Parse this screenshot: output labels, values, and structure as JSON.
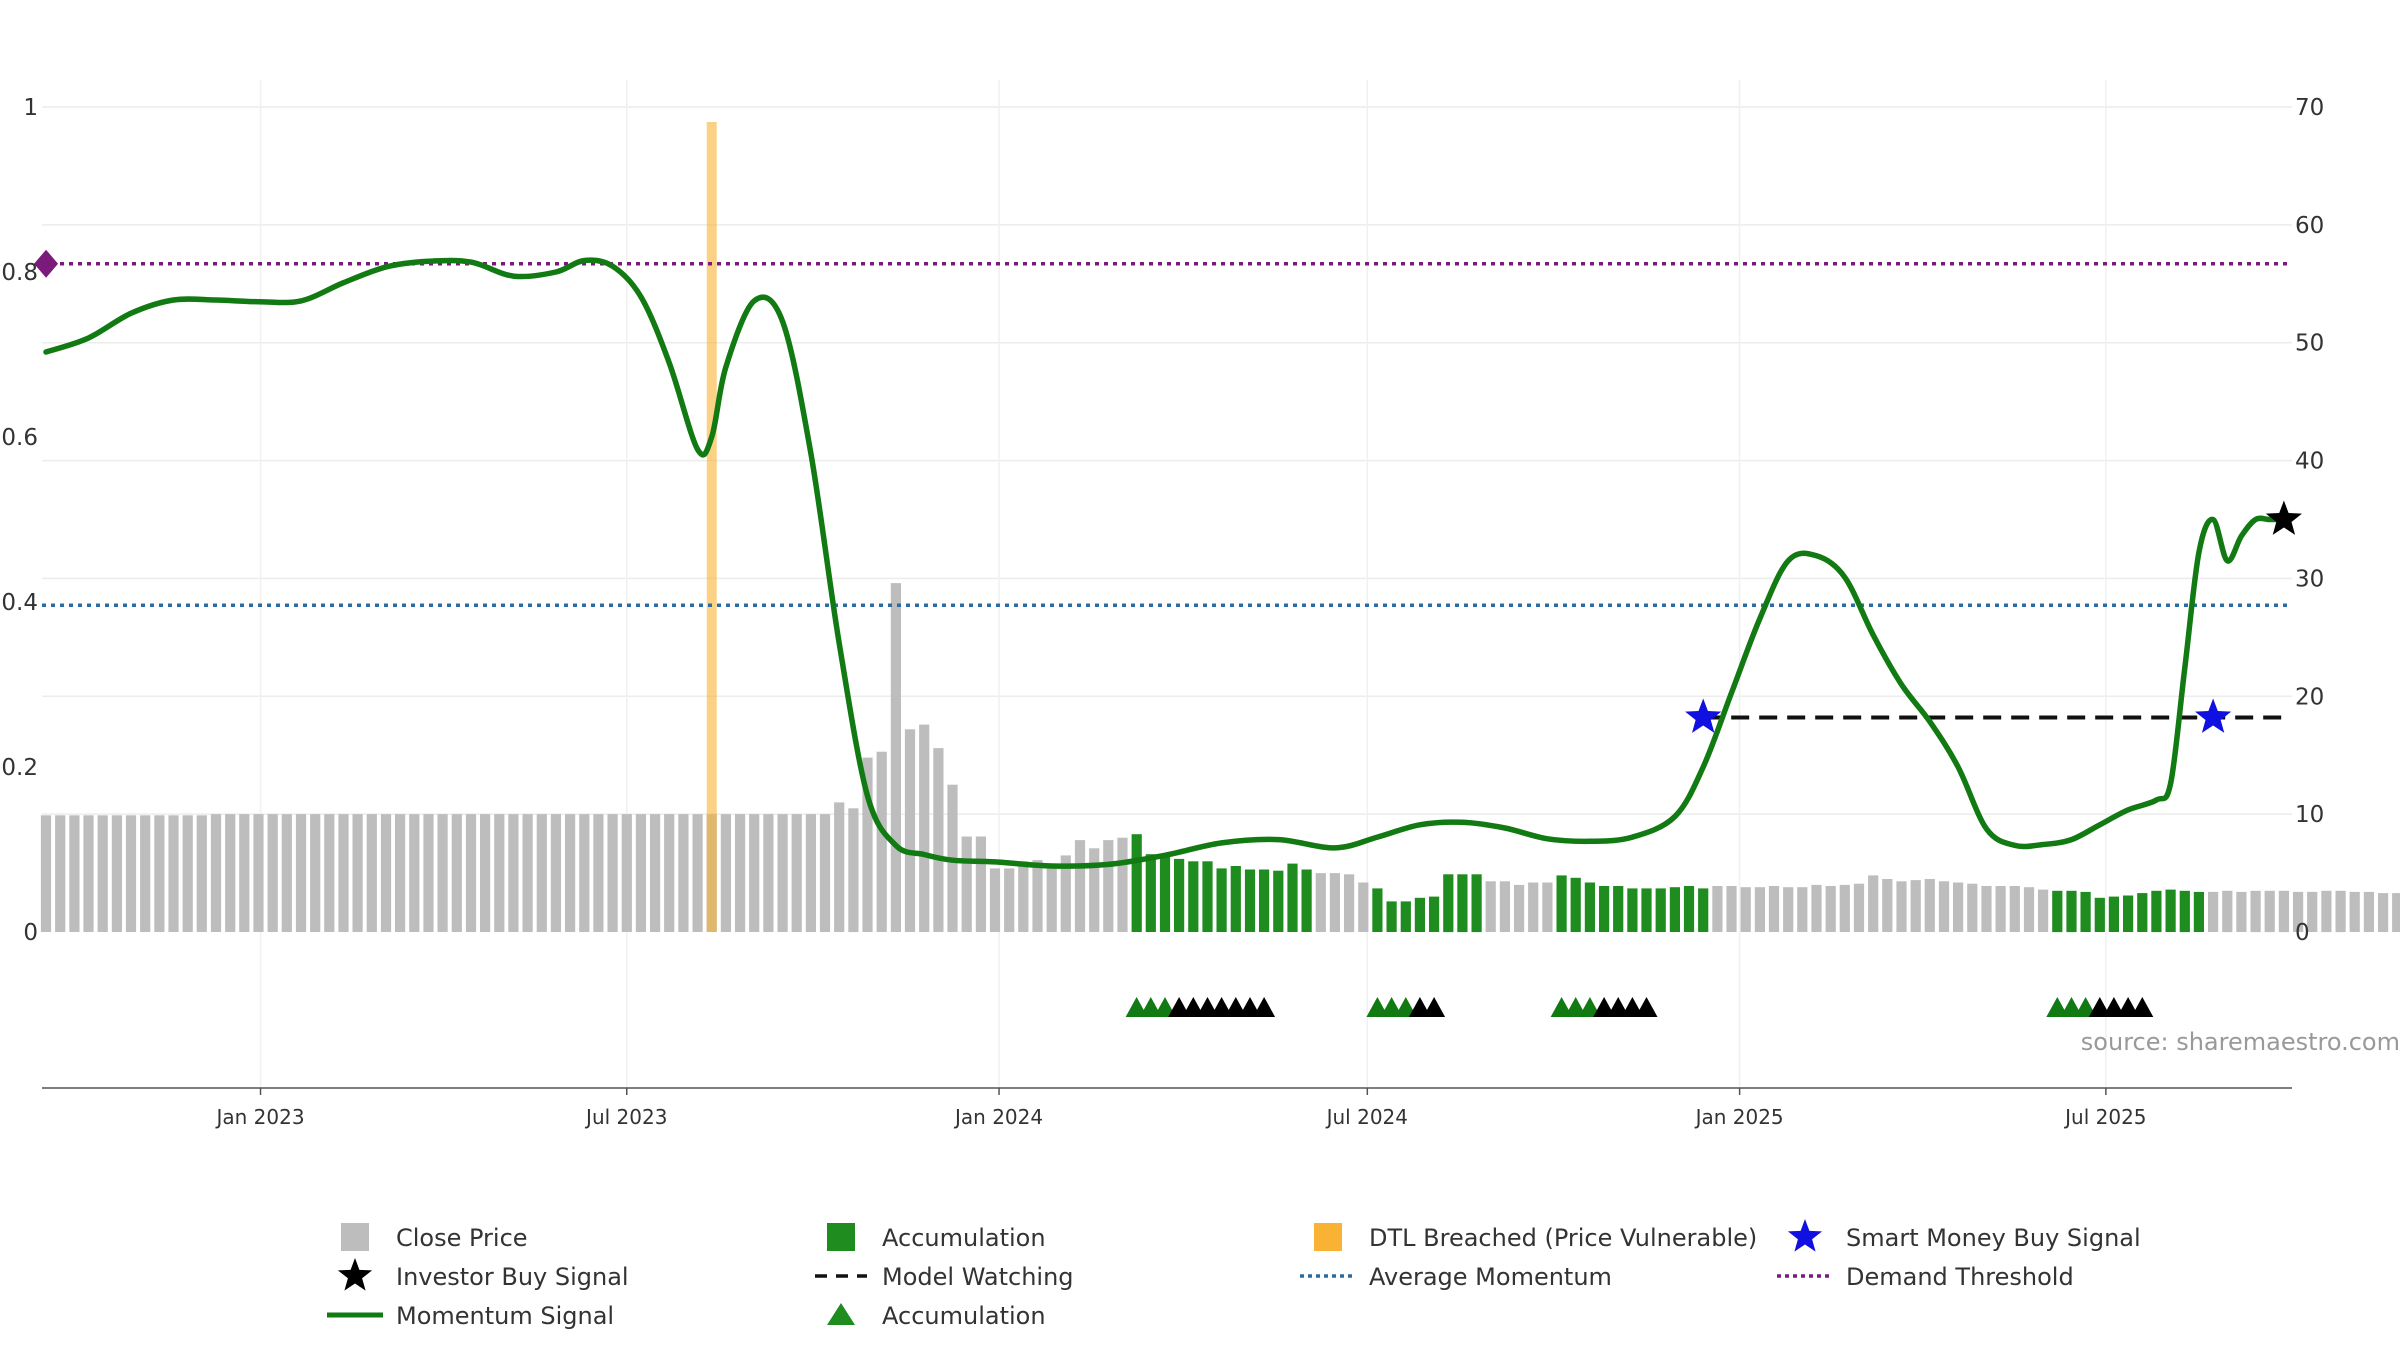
{
  "chart_data": {
    "type": "line",
    "title": "",
    "left_axis": {
      "ylim": [
        0,
        1
      ],
      "ticks": [
        0,
        0.2,
        0.4,
        0.6,
        0.8,
        1
      ],
      "tick_labels": [
        "0",
        "0.2",
        "0.4",
        "0.6",
        "0.8",
        "1"
      ]
    },
    "right_axis": {
      "ylim": [
        0,
        70
      ],
      "ticks": [
        0,
        10,
        20,
        30,
        40,
        50,
        60,
        70
      ],
      "tick_labels": [
        "0",
        "10",
        "20",
        "30",
        "40",
        "50",
        "60",
        "70"
      ]
    },
    "x_axis": {
      "range": [
        "2022-09-15",
        "2025-10-01"
      ],
      "ticks": [
        "2023-01-01",
        "2023-07-01",
        "2024-01-01",
        "2024-07-01",
        "2025-01-01",
        "2025-07-01"
      ],
      "tick_labels": [
        "Jan 2023",
        "Jul 2023",
        "Jan 2024",
        "Jul 2024",
        "Jan 2025",
        "Jul 2025"
      ]
    },
    "grid": true,
    "legend_placement": "bottom",
    "price_bars": {
      "start_date": "2022-09-17",
      "end_date": "2025-09-27",
      "period": "weekly",
      "values": [
        9.9,
        9.9,
        9.9,
        9.9,
        9.9,
        9.9,
        9.9,
        9.9,
        9.9,
        9.9,
        9.9,
        9.9,
        10,
        10,
        10,
        10,
        10,
        10,
        10,
        10,
        10,
        10,
        10,
        10,
        10,
        10,
        10,
        10,
        10,
        10,
        10,
        10,
        10,
        10,
        10,
        10,
        10,
        10,
        10,
        10,
        10,
        10,
        10,
        10,
        10,
        10,
        10,
        10,
        10,
        10,
        10,
        10,
        10,
        10,
        10,
        10,
        11,
        10.5,
        14.8,
        15.3,
        29.6,
        17.2,
        17.6,
        15.6,
        12.5,
        8.1,
        8.1,
        5.4,
        5.4,
        6,
        6.1,
        5.5,
        6.5,
        7.8,
        7.1,
        7.8,
        8,
        8.3,
        6.6,
        6.4,
        6.2,
        6,
        6,
        5.4,
        5.6,
        5.3,
        5.3,
        5.2,
        5.8,
        5.3,
        5,
        5,
        4.9,
        4.2,
        3.7,
        2.6,
        2.6,
        2.9,
        3,
        4.9,
        4.9,
        4.9,
        4.3,
        4.3,
        4,
        4.2,
        4.2,
        4.8,
        4.6,
        4.2,
        3.9,
        3.9,
        3.7,
        3.7,
        3.7,
        3.8,
        3.9,
        3.7,
        3.9,
        3.9,
        3.8,
        3.8,
        3.9,
        3.8,
        3.8,
        4,
        3.9,
        4,
        4.1,
        4.8,
        4.5,
        4.3,
        4.4,
        4.5,
        4.3,
        4.2,
        4.1,
        3.9,
        3.9,
        3.9,
        3.8,
        3.6,
        3.5,
        3.5,
        3.4,
        2.9,
        3,
        3.1,
        3.3,
        3.5,
        3.6,
        3.5,
        3.4,
        3.4,
        3.5,
        3.4,
        3.5,
        3.5,
        3.5,
        3.4,
        3.4,
        3.5,
        3.5,
        3.4,
        3.4,
        3.3,
        3.3,
        3.3
      ],
      "color": "#bdbdbd",
      "accumulation_ranges": [
        [
          "2024-03-09",
          "2024-06-01"
        ],
        [
          "2024-07-06",
          "2024-08-24"
        ],
        [
          "2024-10-05",
          "2024-12-14"
        ],
        [
          "2025-06-07",
          "2025-08-16"
        ]
      ],
      "accumulation_color": "#1e8c1e"
    },
    "series": [
      {
        "name": "Momentum Signal",
        "axis": "left",
        "color": "#127a12",
        "x": [
          "2022-09-17",
          "2022-10-08",
          "2022-10-29",
          "2022-11-19",
          "2022-12-10",
          "2022-12-31",
          "2023-01-21",
          "2023-02-11",
          "2023-03-04",
          "2023-03-25",
          "2023-04-15",
          "2023-05-06",
          "2023-05-27",
          "2023-06-10",
          "2023-06-24",
          "2023-07-08",
          "2023-07-22",
          "2023-08-05",
          "2023-08-12",
          "2023-08-19",
          "2023-09-02",
          "2023-09-16",
          "2023-09-30",
          "2023-10-14",
          "2023-10-28",
          "2023-11-11",
          "2023-11-25",
          "2023-12-09",
          "2023-12-30",
          "2024-01-27",
          "2024-02-24",
          "2024-03-23",
          "2024-04-20",
          "2024-05-18",
          "2024-06-15",
          "2024-07-06",
          "2024-07-27",
          "2024-08-17",
          "2024-09-07",
          "2024-09-28",
          "2024-10-19",
          "2024-11-09",
          "2024-11-30",
          "2024-12-14",
          "2024-12-28",
          "2025-01-11",
          "2025-01-25",
          "2025-02-08",
          "2025-02-22",
          "2025-03-08",
          "2025-03-22",
          "2025-04-05",
          "2025-04-19",
          "2025-05-03",
          "2025-05-17",
          "2025-05-31",
          "2025-06-14",
          "2025-06-28",
          "2025-07-12",
          "2025-07-26",
          "2025-08-02",
          "2025-08-09",
          "2025-08-16",
          "2025-08-23",
          "2025-08-30",
          "2025-09-06",
          "2025-09-13",
          "2025-09-20",
          "2025-09-27"
        ],
        "values": [
          0.703,
          0.72,
          0.75,
          0.766,
          0.766,
          0.764,
          0.765,
          0.787,
          0.806,
          0.813,
          0.812,
          0.795,
          0.8,
          0.814,
          0.807,
          0.77,
          0.69,
          0.585,
          0.6,
          0.685,
          0.765,
          0.74,
          0.58,
          0.35,
          0.165,
          0.105,
          0.094,
          0.087,
          0.085,
          0.08,
          0.082,
          0.093,
          0.108,
          0.112,
          0.102,
          0.115,
          0.13,
          0.133,
          0.126,
          0.113,
          0.11,
          0.115,
          0.14,
          0.2,
          0.29,
          0.38,
          0.45,
          0.456,
          0.43,
          0.36,
          0.3,
          0.255,
          0.2,
          0.125,
          0.105,
          0.106,
          0.112,
          0.13,
          0.148,
          0.16,
          0.18,
          0.32,
          0.46,
          0.5,
          0.45,
          0.48,
          0.5,
          0.5,
          0.5
        ]
      },
      {
        "name": "Average Momentum",
        "axis": "left",
        "color": "#2b6ca3",
        "values": [
          0.396
        ]
      },
      {
        "name": "Demand Threshold",
        "axis": "left",
        "color": "#7a1a7a",
        "values": [
          0.81
        ]
      },
      {
        "name": "Model Watching",
        "axis": "left",
        "color": "#111111",
        "x": [
          "2024-12-14",
          "2025-09-27"
        ],
        "values": [
          0.26,
          0.26
        ]
      }
    ],
    "markers": {
      "dtl_breached": {
        "name": "DTL Breached (Price Vulnerable)",
        "date": "2023-08-12",
        "color": "#f9b233"
      },
      "smart_money_buy": {
        "name": "Smart Money Buy Signal",
        "color": "#1010e0",
        "points": [
          {
            "x": "2024-12-14",
            "y": 0.26
          },
          {
            "x": "2025-08-23",
            "y": 0.26
          }
        ]
      },
      "investor_buy": {
        "name": "Investor Buy Signal",
        "color": "#000000",
        "points": [
          {
            "x": "2025-09-27",
            "y": 0.5
          }
        ]
      },
      "demand_start": {
        "x": "2022-09-17",
        "y": 0.81,
        "color": "#7a1a7a"
      },
      "accumulation_triangles": [
        {
          "start": "2024-03-09",
          "green": 3,
          "black": 7
        },
        {
          "start": "2024-07-06",
          "green": 3,
          "black": 2
        },
        {
          "start": "2024-10-05",
          "green": 3,
          "black": 4
        },
        {
          "start": "2025-06-07",
          "green": 3,
          "black": 4
        }
      ]
    },
    "legend": [
      {
        "label": "Close Price",
        "kind": "square",
        "color": "#bdbdbd"
      },
      {
        "label": "Accumulation",
        "kind": "square",
        "color": "#1e8c1e"
      },
      {
        "label": "DTL Breached (Price Vulnerable)",
        "kind": "square",
        "color": "#f9b233"
      },
      {
        "label": "Smart Money Buy Signal",
        "kind": "star",
        "color": "#1010e0"
      },
      {
        "label": "Investor Buy Signal",
        "kind": "star",
        "color": "#000000"
      },
      {
        "label": "Model Watching",
        "kind": "dash",
        "color": "#111111"
      },
      {
        "label": "Average Momentum",
        "kind": "dot",
        "color": "#2b6ca3"
      },
      {
        "label": "Demand Threshold",
        "kind": "dot",
        "color": "#7a1a7a"
      },
      {
        "label": "Momentum Signal",
        "kind": "line",
        "color": "#127a12"
      },
      {
        "label": "Accumulation",
        "kind": "triangle",
        "color": "#1e8c1e"
      }
    ],
    "source": "source: sharemaestro.com"
  }
}
